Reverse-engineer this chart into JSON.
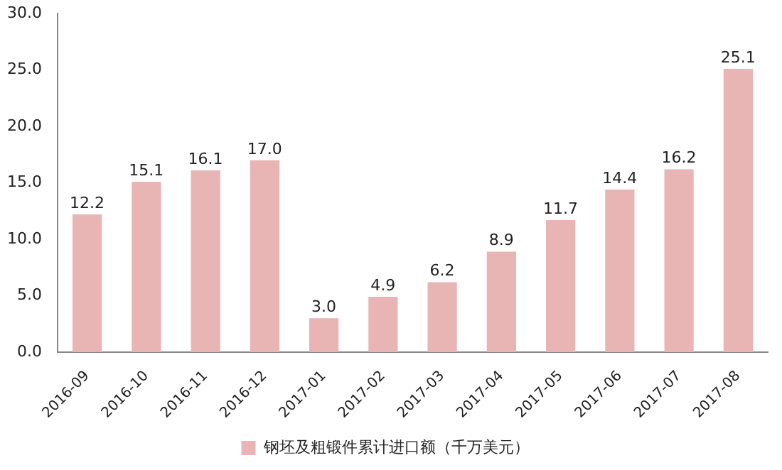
{
  "chart_data": {
    "type": "bar",
    "categories": [
      "2016-09",
      "2016-10",
      "2016-11",
      "2016-12",
      "2017-01",
      "2017-02",
      "2017-03",
      "2017-04",
      "2017-05",
      "2017-06",
      "2017-07",
      "2017-08"
    ],
    "series": [
      {
        "name": "钢坯及粗锻件累计进口额（千万美元）",
        "color": "#e8b4b4",
        "values": [
          12.2,
          15.1,
          16.1,
          17.0,
          3.0,
          4.9,
          6.2,
          8.9,
          11.7,
          14.4,
          16.2,
          25.1
        ],
        "value_labels": [
          "12.2",
          "15.1",
          "16.1",
          "17.0",
          "3.0",
          "4.9",
          "6.2",
          "8.9",
          "11.7",
          "14.4",
          "16.2",
          "25.1"
        ]
      }
    ],
    "ylim": [
      0,
      30
    ],
    "yticks": [
      {
        "value": 0,
        "label": "0.0"
      },
      {
        "value": 5,
        "label": "5.0"
      },
      {
        "value": 10,
        "label": "10.0"
      },
      {
        "value": 15,
        "label": "15.0"
      },
      {
        "value": 20,
        "label": "20.0"
      },
      {
        "value": 25,
        "label": "25.0"
      },
      {
        "value": 30,
        "label": "30.0"
      }
    ],
    "grid": false,
    "legend": "bottom"
  }
}
